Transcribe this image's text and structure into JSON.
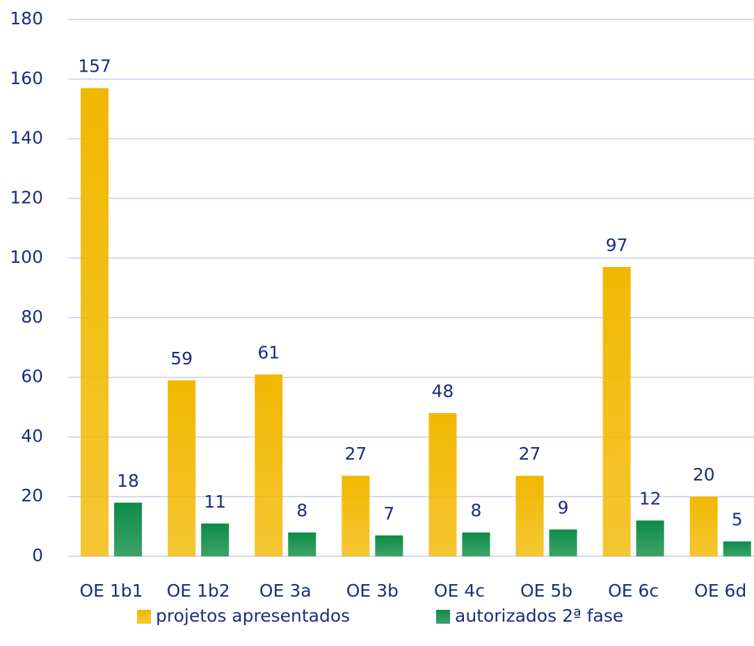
{
  "chart_data": {
    "type": "bar",
    "categories": [
      "OE 1b1",
      "OE 1b2",
      "OE 3a",
      "OE 3b",
      "OE 4c",
      "OE 5b",
      "OE 6c",
      "OE 6d"
    ],
    "series": [
      {
        "name": "projetos apresentados",
        "color": "#f2b800",
        "values": [
          157,
          59,
          61,
          27,
          48,
          27,
          97,
          20
        ]
      },
      {
        "name": "autorizados 2ª fase",
        "color": "#0d8c45",
        "values": [
          18,
          11,
          8,
          7,
          8,
          9,
          12,
          5
        ]
      }
    ],
    "ylim": [
      0,
      180
    ],
    "yticks": [
      0,
      20,
      40,
      60,
      80,
      100,
      120,
      140,
      160,
      180
    ],
    "grid": true,
    "legend": "bottom"
  }
}
